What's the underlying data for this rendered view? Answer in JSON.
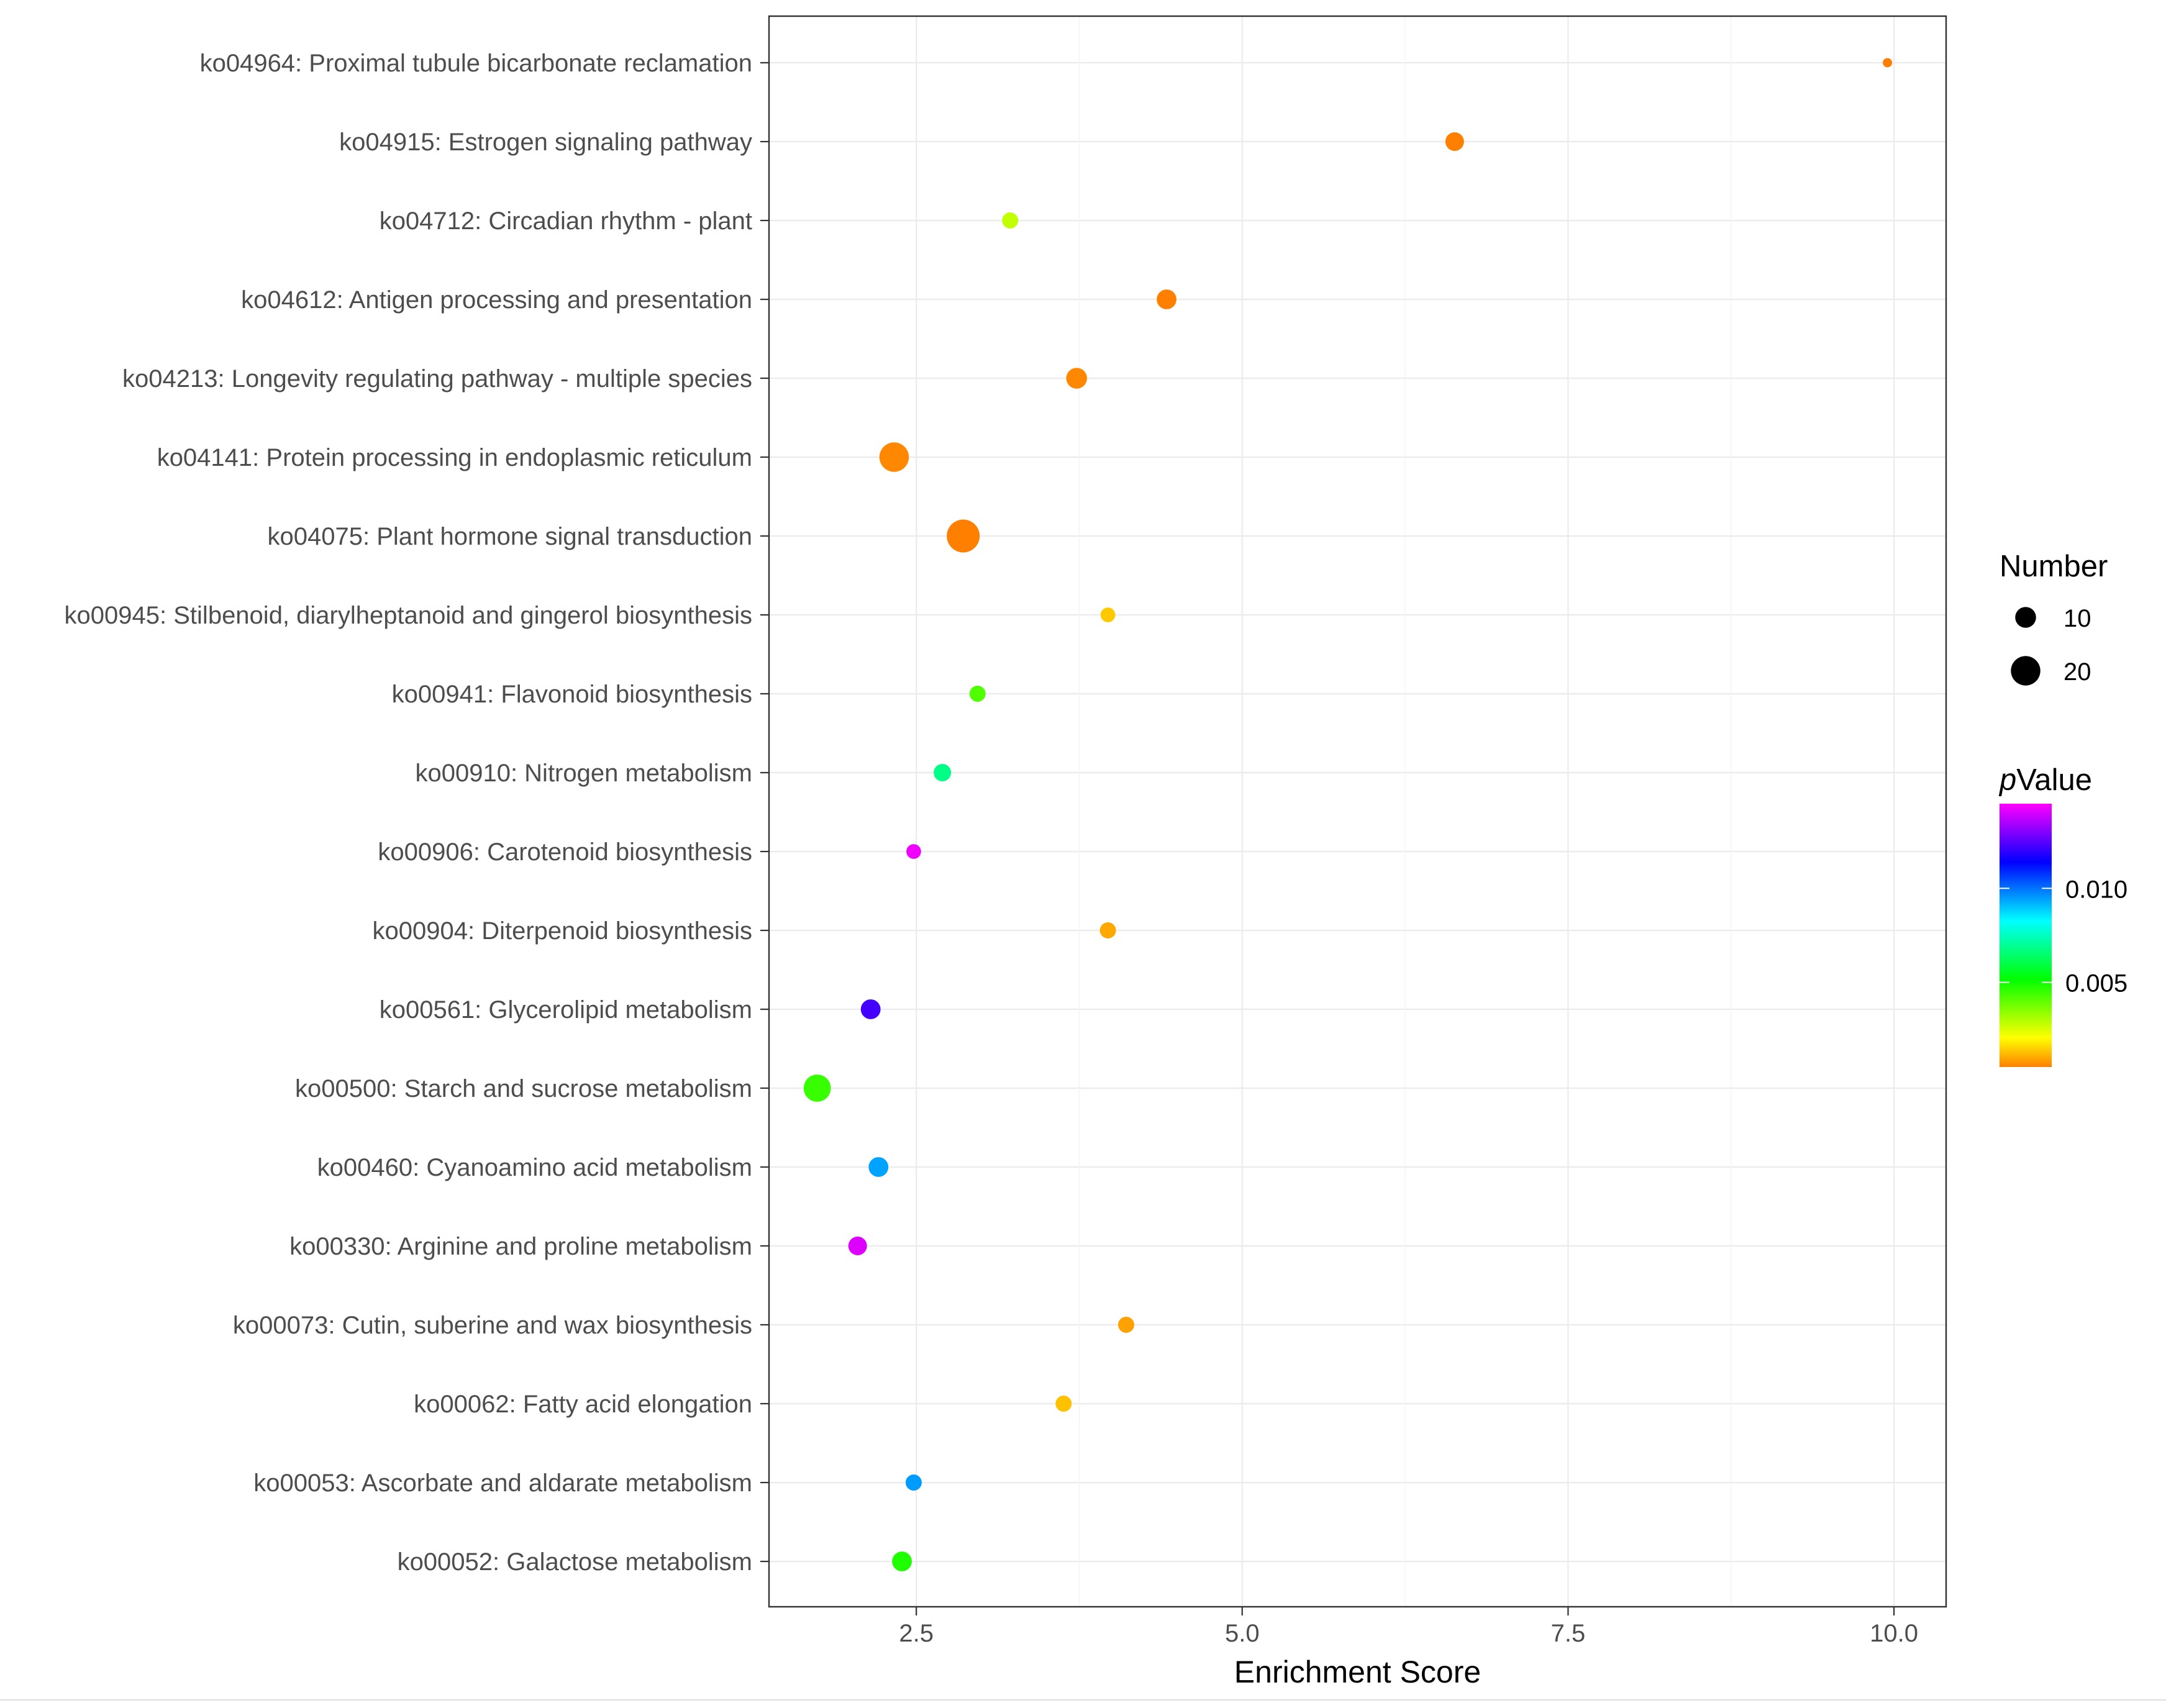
{
  "chart_data": {
    "type": "scatter",
    "title": "",
    "xlabel": "Enrichment Score",
    "ylabel": "",
    "xlim": [
      1.37,
      10.4
    ],
    "xticks": [
      2.5,
      5.0,
      7.5,
      10.0
    ],
    "xtick_labels": [
      "2.5",
      "5.0",
      "7.5",
      "10.0"
    ],
    "grid": true,
    "categories": [
      "ko04964: Proximal tubule bicarbonate reclamation",
      "ko04915: Estrogen signaling pathway",
      "ko04712: Circadian rhythm - plant",
      "ko04612: Antigen processing and presentation",
      "ko04213: Longevity regulating pathway - multiple species",
      "ko04141: Protein processing in endoplasmic reticulum",
      "ko04075: Plant hormone signal transduction",
      "ko00945: Stilbenoid, diarylheptanoid and gingerol biosynthesis",
      "ko00941: Flavonoid biosynthesis",
      "ko00910: Nitrogen metabolism",
      "ko00906: Carotenoid biosynthesis",
      "ko00904: Diterpenoid biosynthesis",
      "ko00561: Glycerolipid metabolism",
      "ko00500: Starch and sucrose metabolism",
      "ko00460: Cyanoamino acid metabolism",
      "ko00330: Arginine and proline metabolism",
      "ko00073: Cutin, suberine and wax biosynthesis",
      "ko00062: Fatty acid elongation",
      "ko00053: Ascorbate and aldarate metabolism",
      "ko00052: Galactose metabolism"
    ],
    "points": [
      {
        "score": 9.95,
        "number": 2,
        "pvalue": 0.0003
      },
      {
        "score": 6.63,
        "number": 8,
        "pvalue": 0.0003
      },
      {
        "score": 3.22,
        "number": 6,
        "pvalue": 0.0028
      },
      {
        "score": 4.42,
        "number": 9,
        "pvalue": 0.0005
      },
      {
        "score": 3.73,
        "number": 10,
        "pvalue": 0.0006
      },
      {
        "score": 2.33,
        "number": 20,
        "pvalue": 0.0006
      },
      {
        "score": 2.86,
        "number": 25,
        "pvalue": 0.0003
      },
      {
        "score": 3.97,
        "number": 5,
        "pvalue": 0.0014
      },
      {
        "score": 2.97,
        "number": 6,
        "pvalue": 0.0042
      },
      {
        "score": 2.7,
        "number": 7,
        "pvalue": 0.0068
      },
      {
        "score": 2.48,
        "number": 5,
        "pvalue": 0.0143
      },
      {
        "score": 3.97,
        "number": 6,
        "pvalue": 0.001
      },
      {
        "score": 2.15,
        "number": 9,
        "pvalue": 0.0122
      },
      {
        "score": 1.74,
        "number": 17,
        "pvalue": 0.0045
      },
      {
        "score": 2.21,
        "number": 9,
        "pvalue": 0.0094
      },
      {
        "score": 2.05,
        "number": 8,
        "pvalue": 0.0141
      },
      {
        "score": 4.11,
        "number": 6,
        "pvalue": 0.0009
      },
      {
        "score": 3.63,
        "number": 6,
        "pvalue": 0.0013
      },
      {
        "score": 2.48,
        "number": 6,
        "pvalue": 0.0095
      },
      {
        "score": 2.39,
        "number": 9,
        "pvalue": 0.0048
      }
    ],
    "legend_size": {
      "title": "Number",
      "entries": [
        {
          "label": "10",
          "value": 10
        },
        {
          "label": "20",
          "value": 20
        }
      ]
    },
    "legend_color": {
      "title_italic": "p",
      "title_rest": "Value",
      "range": [
        0.0005,
        0.0145
      ],
      "ticks": [
        {
          "label": "0.010",
          "value": 0.01
        },
        {
          "label": "0.005",
          "value": 0.005
        }
      ],
      "colors": [
        "#ff8000",
        "#ffff00",
        "#80ff00",
        "#00ff00",
        "#00ff80",
        "#00ffff",
        "#0080ff",
        "#0000ff",
        "#8000ff",
        "#ff00ff"
      ]
    },
    "legend_position": "right"
  }
}
